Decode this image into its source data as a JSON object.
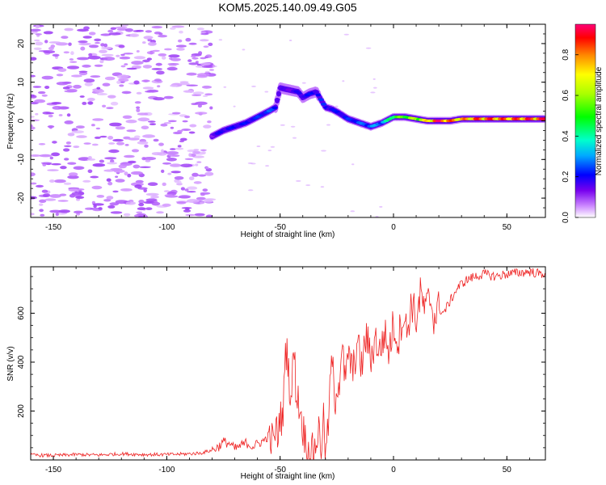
{
  "title": "KOM5.2025.140.09.49.G05",
  "chart_data": [
    {
      "type": "heatmap",
      "xlabel": "Height of straight line (km)",
      "ylabel": "Frequency (Hz)",
      "xlim": [
        -160,
        67
      ],
      "ylim": [
        -25,
        25
      ],
      "xticks": [
        -150,
        -100,
        -50,
        0,
        50
      ],
      "yticks": [
        -20,
        -10,
        0,
        10,
        20
      ],
      "colorbar": {
        "label": "Normalized spectral amplitude",
        "range": [
          0,
          0.95
        ],
        "ticks": [
          0.0,
          0.2,
          0.4,
          0.6,
          0.8
        ]
      },
      "ridge": {
        "x": [
          -80,
          -75,
          -70,
          -65,
          -60,
          -55,
          -52,
          -50,
          -46,
          -42,
          -40,
          -37,
          -34,
          -30,
          -27,
          -24,
          -20,
          -15,
          -10,
          -5,
          0,
          5,
          10,
          15,
          20,
          25,
          30,
          40,
          50,
          60,
          67
        ],
        "y": [
          -4,
          -2.5,
          -1.5,
          -0.5,
          1,
          2.5,
          3.5,
          8.5,
          8,
          7.5,
          6,
          7,
          7.5,
          3.5,
          3,
          2,
          0.5,
          -0.5,
          -1.5,
          -0.5,
          1,
          1,
          0.5,
          0,
          0,
          0,
          0.5,
          0.5,
          0.5,
          0.5,
          0.5
        ],
        "amplitude": [
          0.15,
          0.2,
          0.2,
          0.2,
          0.22,
          0.25,
          0.22,
          0.15,
          0.15,
          0.18,
          0.2,
          0.2,
          0.22,
          0.22,
          0.2,
          0.2,
          0.22,
          0.25,
          0.28,
          0.3,
          0.5,
          0.55,
          0.6,
          0.7,
          0.95,
          0.8,
          0.75,
          0.85,
          0.8,
          0.85,
          0.85
        ]
      }
    },
    {
      "type": "line",
      "xlabel": "Height of straight line (km)",
      "ylabel": "SNR (v/v)",
      "xlim": [
        -160,
        67
      ],
      "ylim": [
        0,
        790
      ],
      "xticks": [
        -150,
        -100,
        -50,
        0,
        50
      ],
      "yticks": [
        200,
        400,
        600
      ],
      "series": [
        {
          "color": "#ee2222",
          "x": [
            -160,
            -150,
            -140,
            -130,
            -120,
            -110,
            -100,
            -90,
            -85,
            -80,
            -77,
            -75,
            -72,
            -70,
            -67,
            -65,
            -62,
            -60,
            -57,
            -55,
            -53,
            -52,
            -51,
            -50,
            -49,
            -48,
            -47,
            -46,
            -45,
            -44,
            -43,
            -42,
            -41,
            -40,
            -39,
            -38,
            -37,
            -36,
            -35,
            -34,
            -33,
            -32,
            -31,
            -30,
            -29,
            -28,
            -27,
            -26,
            -25,
            -24,
            -23,
            -22,
            -21,
            -20,
            -18,
            -16,
            -14,
            -12,
            -10,
            -8,
            -6,
            -4,
            -2,
            0,
            2,
            4,
            6,
            8,
            10,
            12,
            14,
            16,
            18,
            20,
            22,
            25,
            28,
            30,
            33,
            36,
            40,
            45,
            50,
            55,
            60,
            65,
            67
          ],
          "y": [
            20,
            18,
            22,
            20,
            25,
            22,
            22,
            25,
            28,
            40,
            55,
            75,
            65,
            45,
            60,
            70,
            55,
            65,
            80,
            100,
            70,
            130,
            90,
            200,
            140,
            370,
            480,
            320,
            240,
            480,
            290,
            240,
            200,
            130,
            90,
            40,
            20,
            30,
            40,
            75,
            130,
            40,
            180,
            20,
            100,
            290,
            430,
            200,
            330,
            300,
            460,
            390,
            300,
            450,
            350,
            480,
            380,
            510,
            410,
            500,
            440,
            520,
            440,
            560,
            480,
            600,
            520,
            650,
            570,
            680,
            600,
            670,
            580,
            620,
            600,
            650,
            700,
            720,
            740,
            750,
            760,
            750,
            760,
            765,
            770,
            760,
            765
          ]
        }
      ]
    }
  ]
}
